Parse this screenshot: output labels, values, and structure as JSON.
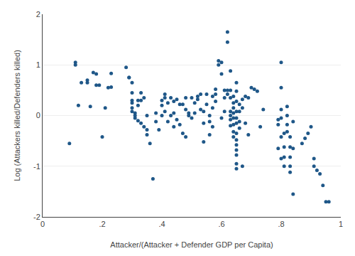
{
  "chart_data": {
    "type": "scatter",
    "xlabel": "Attacker/(Attacker + Defender GDP per Capita)",
    "ylabel": "Log (Attackers killed/Defenders killed)",
    "xlim": [
      0,
      1
    ],
    "ylim": [
      -2,
      2
    ],
    "xticks": [
      0,
      {
        "value": 0.2,
        "label": ".2"
      },
      {
        "value": 0.4,
        "label": ".4"
      },
      {
        "value": 0.6,
        "label": ".6"
      },
      {
        "value": 0.8,
        "label": ".8"
      },
      1
    ],
    "yticks": [
      -2,
      -1,
      0,
      1,
      2
    ],
    "grid": "y",
    "color": "#1f5788",
    "marker": "circle",
    "x": [
      0.09,
      0.11,
      0.11,
      0.12,
      0.13,
      0.15,
      0.15,
      0.16,
      0.17,
      0.18,
      0.18,
      0.19,
      0.2,
      0.21,
      0.22,
      0.23,
      0.23,
      0.28,
      0.29,
      0.29,
      0.3,
      0.3,
      0.3,
      0.3,
      0.3,
      0.3,
      0.31,
      0.31,
      0.31,
      0.32,
      0.32,
      0.32,
      0.33,
      0.33,
      0.33,
      0.34,
      0.34,
      0.35,
      0.35,
      0.35,
      0.36,
      0.37,
      0.38,
      0.38,
      0.39,
      0.4,
      0.4,
      0.4,
      0.41,
      0.41,
      0.41,
      0.42,
      0.42,
      0.43,
      0.43,
      0.44,
      0.44,
      0.44,
      0.45,
      0.45,
      0.46,
      0.46,
      0.47,
      0.47,
      0.48,
      0.48,
      0.48,
      0.49,
      0.49,
      0.5,
      0.5,
      0.51,
      0.51,
      0.52,
      0.52,
      0.53,
      0.53,
      0.54,
      0.54,
      0.54,
      0.55,
      0.55,
      0.56,
      0.56,
      0.56,
      0.57,
      0.57,
      0.57,
      0.58,
      0.58,
      0.58,
      0.59,
      0.59,
      0.6,
      0.6,
      0.6,
      0.61,
      0.61,
      0.61,
      0.62,
      0.62,
      0.62,
      0.62,
      0.63,
      0.63,
      0.63,
      0.63,
      0.63,
      0.63,
      0.63,
      0.64,
      0.64,
      0.64,
      0.64,
      0.64,
      0.64,
      0.64,
      0.64,
      0.65,
      0.65,
      0.65,
      0.65,
      0.65,
      0.65,
      0.65,
      0.65,
      0.65,
      0.65,
      0.65,
      0.65,
      0.65,
      0.66,
      0.66,
      0.66,
      0.66,
      0.67,
      0.67,
      0.67,
      0.68,
      0.68,
      0.69,
      0.69,
      0.7,
      0.71,
      0.72,
      0.73,
      0.74,
      0.79,
      0.79,
      0.79,
      0.8,
      0.8,
      0.8,
      0.8,
      0.8,
      0.8,
      0.81,
      0.81,
      0.81,
      0.81,
      0.82,
      0.82,
      0.82,
      0.82,
      0.83,
      0.83,
      0.83,
      0.83,
      0.83,
      0.84,
      0.84,
      0.84,
      0.87,
      0.88,
      0.89,
      0.9,
      0.91,
      0.91,
      0.92,
      0.93,
      0.94,
      0.95,
      0.96
    ],
    "values": [
      -0.55,
      1.0,
      1.05,
      0.2,
      0.65,
      0.7,
      0.65,
      0.18,
      0.85,
      0.82,
      0.6,
      0.6,
      -0.42,
      0.15,
      0.55,
      0.56,
      0.83,
      0.95,
      0.75,
      0.75,
      0.65,
      0.45,
      0.3,
      0.25,
      0.15,
      0.08,
      0.05,
      0.0,
      -0.05,
      0.2,
      0.3,
      -0.1,
      0.45,
      0.3,
      -0.15,
      0.35,
      -0.22,
      -0.28,
      -0.38,
      0.0,
      -0.55,
      -1.25,
      -0.12,
      0.05,
      -0.28,
      0.3,
      0.2,
      0.0,
      0.42,
      0.35,
      0.08,
      0.25,
      -0.12,
      0.35,
      0.0,
      0.28,
      0.05,
      -0.22,
      0.32,
      -0.08,
      0.22,
      -0.18,
      0.22,
      -0.35,
      0.35,
      0.12,
      -0.42,
      0.05,
      0.0,
      0.35,
      -0.05,
      0.25,
      0.05,
      0.38,
      0.32,
      0.42,
      0.12,
      0.08,
      -0.15,
      -0.52,
      0.42,
      0.22,
      -0.12,
      0.0,
      -0.38,
      0.15,
      0.38,
      -0.22,
      0.52,
      0.42,
      0.28,
      1.0,
      1.08,
      1.05,
      0.82,
      -0.05,
      0.5,
      0.35,
      0.08,
      1.65,
      1.45,
      0.5,
      0.42,
      0.88,
      0.5,
      0.35,
      0.08,
      0.0,
      -0.08,
      -0.2,
      0.38,
      0.25,
      0.15,
      0.05,
      -0.05,
      -0.18,
      -0.32,
      -0.42,
      0.65,
      0.48,
      0.28,
      0.08,
      -0.05,
      -0.15,
      -0.35,
      -0.48,
      -0.58,
      -0.68,
      -0.78,
      -0.95,
      -1.05,
      0.22,
      0.08,
      -0.12,
      -0.25,
      0.32,
      0.15,
      -1.0,
      0.38,
      -0.15,
      0.35,
      -0.38,
      0.55,
      0.52,
      0.48,
      -0.22,
      0.12,
      -0.08,
      -0.18,
      -0.65,
      1.05,
      0.55,
      0.12,
      -0.05,
      -0.42,
      -0.85,
      -0.35,
      -0.62,
      -0.82,
      -1.0,
      0.18,
      0.0,
      -0.18,
      -0.32,
      -0.42,
      -0.62,
      -0.82,
      -1.0,
      -1.12,
      -0.12,
      -0.65,
      -1.55,
      -0.55,
      -0.45,
      -0.35,
      -0.22,
      -0.85,
      -1.0,
      -1.08,
      -1.15,
      -1.38,
      -1.7,
      -1.7
    ]
  }
}
